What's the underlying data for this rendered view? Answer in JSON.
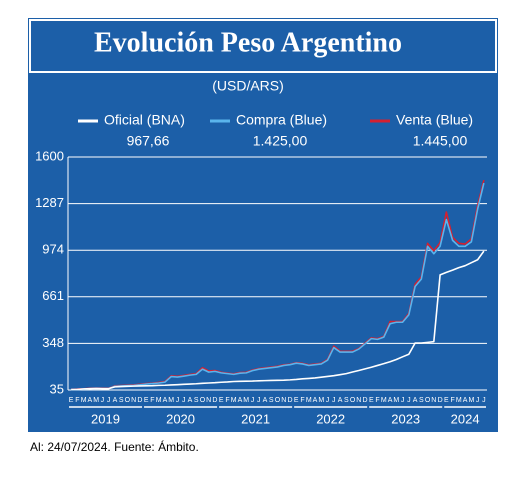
{
  "chart_data": {
    "type": "line",
    "title": "Evolución Peso Argentino",
    "subtitle": "(USD/ARS)",
    "footnote": "Al: 24/07/2024. Fuente: Ámbito.",
    "categories": [
      "E",
      "F",
      "M",
      "A",
      "M",
      "J",
      "J",
      "A",
      "S",
      "O",
      "N",
      "D",
      "E",
      "F",
      "M",
      "A",
      "M",
      "J",
      "J",
      "A",
      "S",
      "O",
      "N",
      "D",
      "E",
      "F",
      "M",
      "A",
      "M",
      "J",
      "J",
      "A",
      "S",
      "O",
      "N",
      "D",
      "E",
      "F",
      "M",
      "A",
      "M",
      "J",
      "J",
      "A",
      "S",
      "O",
      "N",
      "D",
      "E",
      "F",
      "M",
      "A",
      "M",
      "J",
      "J",
      "A",
      "S",
      "O",
      "N",
      "D",
      "E",
      "F",
      "M",
      "A",
      "M",
      "J",
      "J"
    ],
    "years": [
      "2019",
      "2020",
      "2021",
      "2022",
      "2023",
      "2024"
    ],
    "ylim": [
      35,
      1600
    ],
    "yticks": [
      35,
      348,
      661,
      974,
      1287,
      1600
    ],
    "grid": true,
    "series": [
      {
        "name": "Oficial (BNA)",
        "legend_value": "967,66",
        "color": "#ffffff",
        "values": [
          38,
          39,
          42,
          44,
          45,
          44,
          44,
          56,
          58,
          60,
          61,
          62,
          63,
          64,
          66,
          67,
          69,
          71,
          73,
          75,
          77,
          80,
          82,
          84,
          87,
          89,
          92,
          93,
          94,
          95,
          97,
          98,
          99,
          100,
          101,
          103,
          106,
          110,
          113,
          116,
          121,
          126,
          131,
          138,
          145,
          156,
          166,
          177,
          188,
          200,
          212,
          225,
          240,
          258,
          275,
          350,
          350,
          355,
          360,
          808,
          825,
          840,
          857,
          870,
          890,
          910,
          967.66
        ]
      },
      {
        "name": "Compra (Blue)",
        "legend_value": "1.425,00",
        "color": "#5ab4ec",
        "values": [
          37,
          39,
          41,
          44,
          46,
          45,
          44,
          60,
          62,
          64,
          66,
          70,
          75,
          78,
          82,
          88,
          125,
          122,
          128,
          135,
          140,
          175,
          155,
          160,
          150,
          145,
          140,
          148,
          150,
          165,
          175,
          180,
          185,
          190,
          200,
          205,
          215,
          210,
          200,
          205,
          210,
          235,
          320,
          290,
          290,
          290,
          310,
          345,
          380,
          375,
          390,
          480,
          490,
          490,
          540,
          730,
          780,
          1000,
          950,
          1000,
          1180,
          1040,
          1000,
          1000,
          1030,
          1250,
          1425
        ]
      },
      {
        "name": "Venta (Blue)",
        "legend_value": "1.445,00",
        "color": "#d42030",
        "values": [
          39,
          41,
          43,
          46,
          48,
          47,
          46,
          63,
          65,
          67,
          69,
          73,
          78,
          81,
          86,
          92,
          130,
          127,
          133,
          140,
          145,
          185,
          163,
          166,
          154,
          148,
          144,
          152,
          154,
          169,
          179,
          184,
          189,
          194,
          204,
          208,
          219,
          214,
          204,
          209,
          214,
          240,
          330,
          296,
          295,
          295,
          314,
          350,
          385,
          380,
          395,
          495,
          495,
          495,
          550,
          745,
          795,
          1020,
          970,
          1025,
          1230,
          1060,
          1020,
          1015,
          1050,
          1275,
          1445
        ]
      }
    ]
  }
}
